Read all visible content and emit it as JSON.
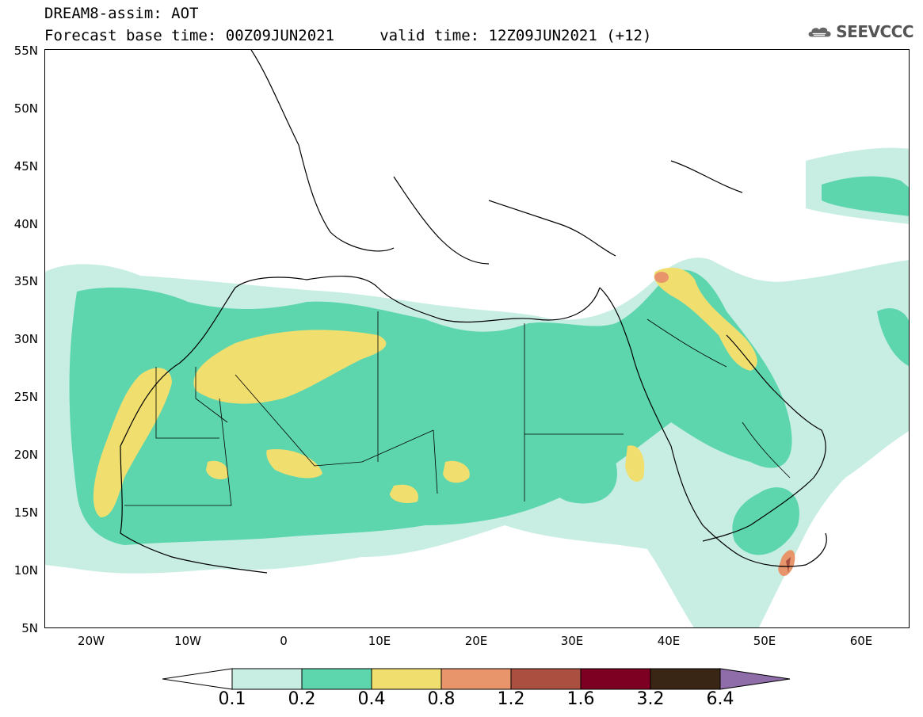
{
  "header": {
    "line1": "DREAM8-assim: AOT",
    "line2": "Forecast base time: 00Z09JUN2021     valid time: 12Z09JUN2021 (+12)",
    "logo_text": "SEEVCCC"
  },
  "map": {
    "lat_labels": [
      "55N",
      "50N",
      "45N",
      "40N",
      "35N",
      "30N",
      "25N",
      "20N",
      "15N",
      "10N",
      "5N"
    ],
    "lon_labels": [
      "20W",
      "10W",
      "0",
      "10E",
      "20E",
      "30E",
      "40E",
      "50E",
      "60E"
    ]
  },
  "legend": {
    "labels": [
      "0.1",
      "0.2",
      "0.4",
      "0.8",
      "1.2",
      "1.6",
      "3.2",
      "6.4"
    ],
    "colors": [
      "#ffffff",
      "#c8eee4",
      "#5dd6ae",
      "#f0df6e",
      "#e8956c",
      "#ab4f41",
      "#7d0022",
      "#3a2614",
      "#8f6da8"
    ]
  },
  "colors": {
    "aot_01_02": "#c8eee4",
    "aot_02_04": "#5dd6ae",
    "aot_04_08": "#f0df6e",
    "aot_08_12": "#e8956c",
    "aot_12_16": "#ab4f41"
  }
}
